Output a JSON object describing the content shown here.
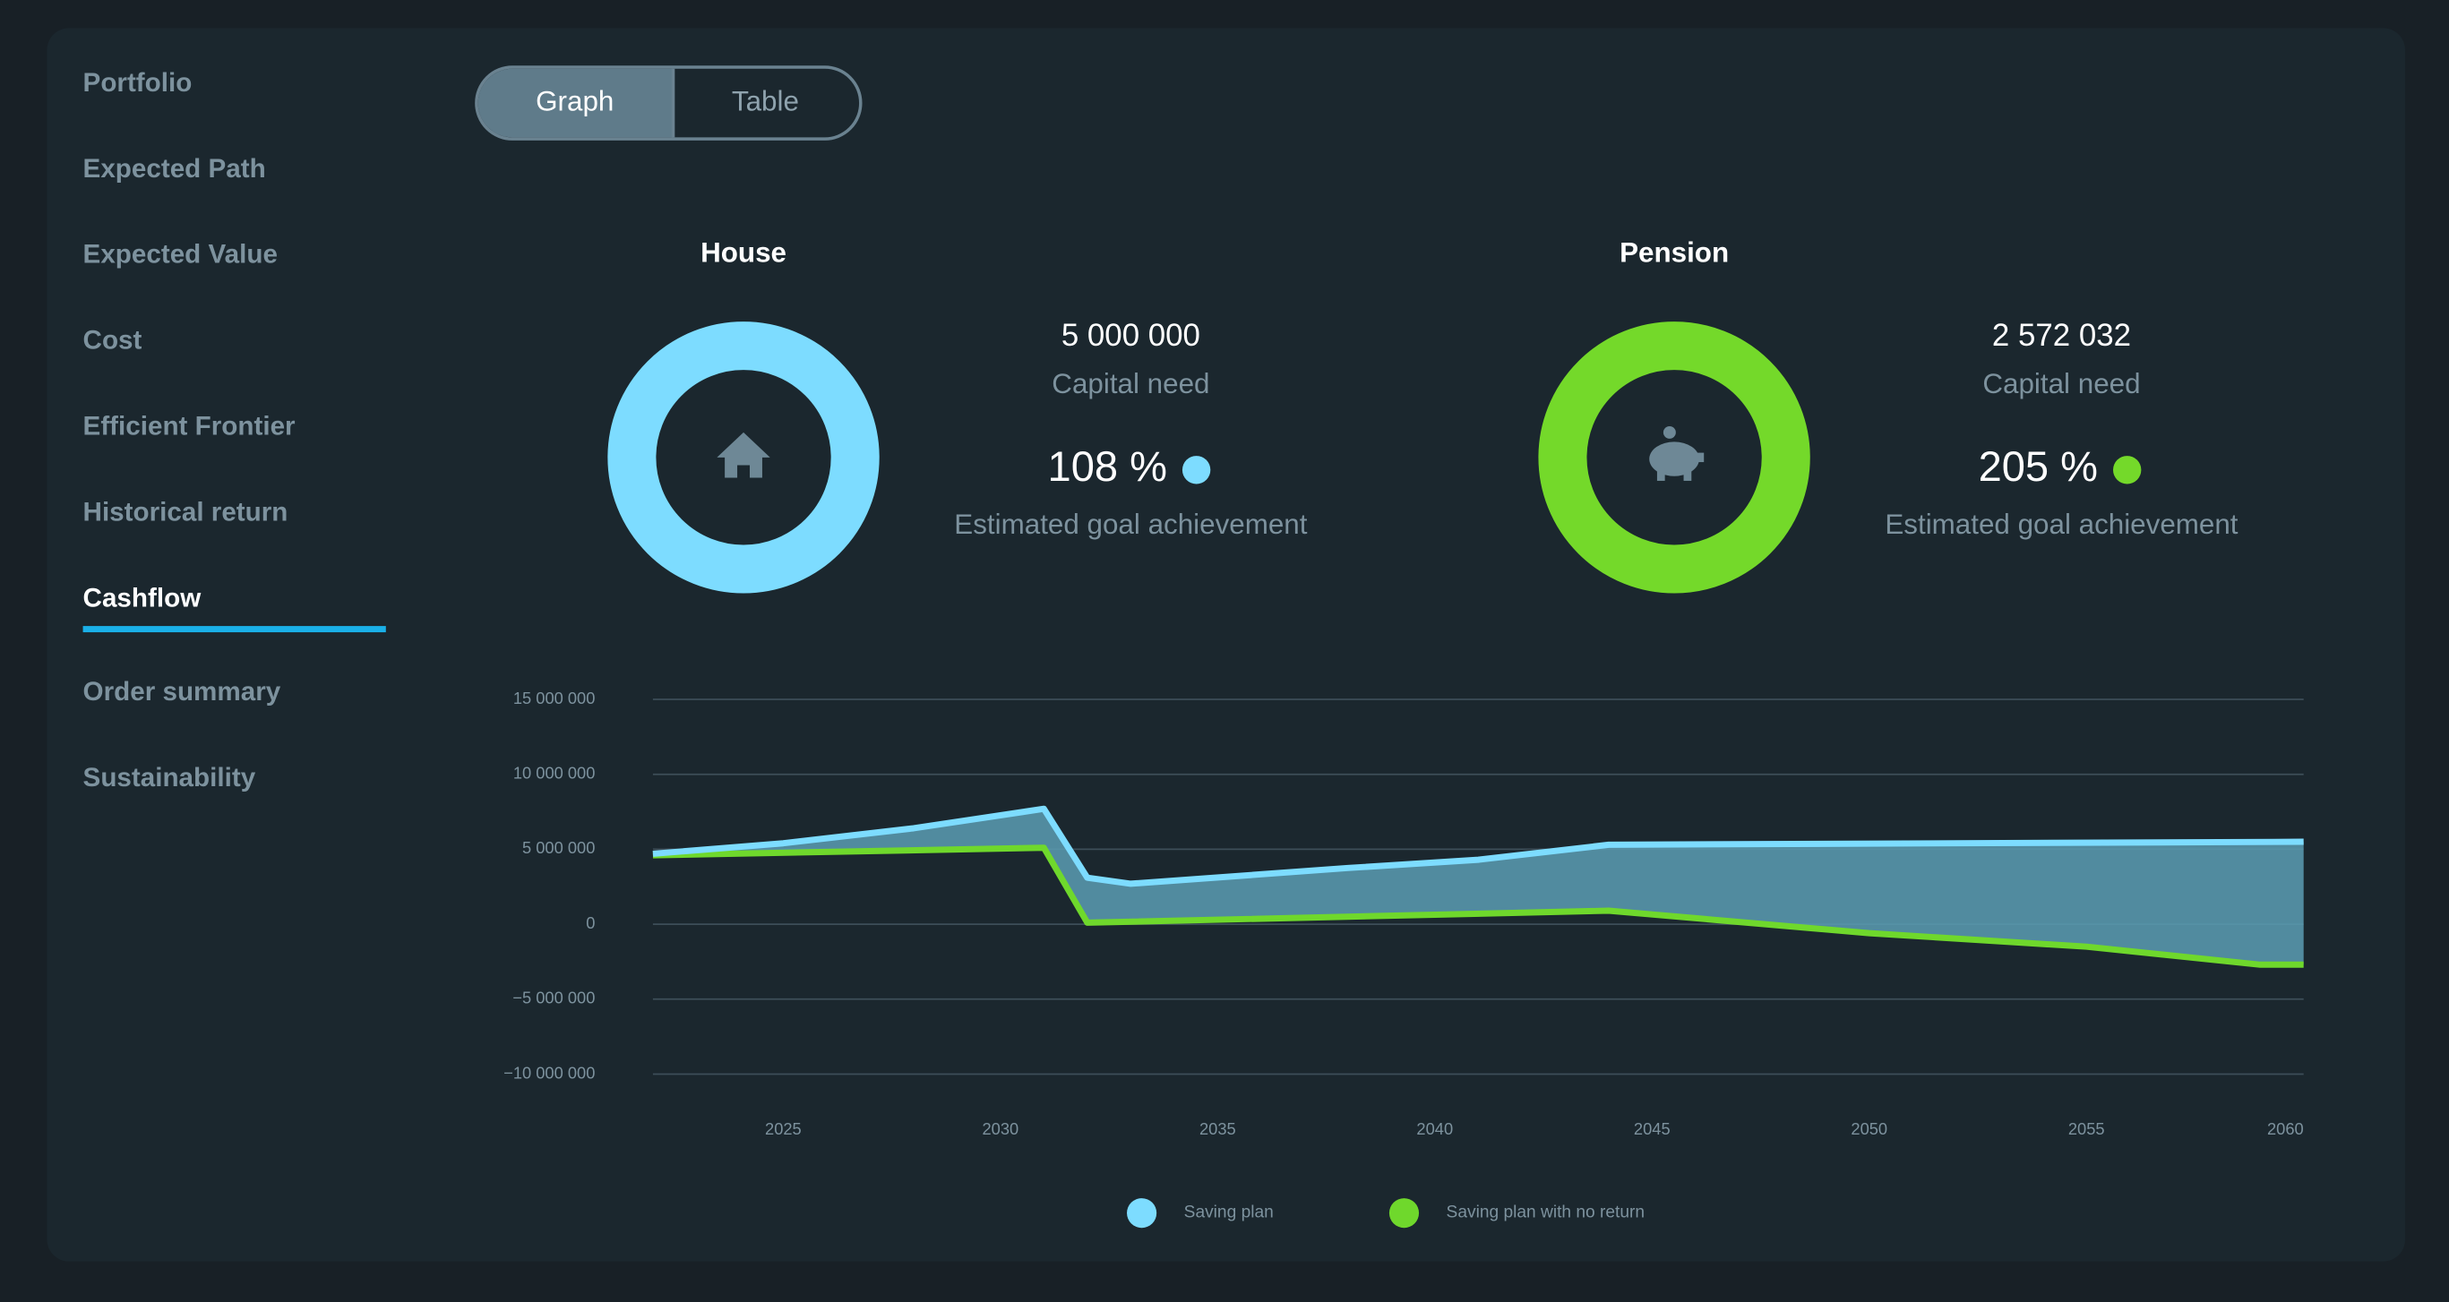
{
  "sidebar": {
    "items": [
      "Portfolio",
      "Expected Path",
      "Expected Value",
      "Cost",
      "Efficient Frontier",
      "Historical return",
      "Cashflow",
      "Order summary",
      "Sustainability"
    ],
    "active": 6
  },
  "toggle": {
    "options": [
      "Graph",
      "Table"
    ],
    "active": 0
  },
  "goals": [
    {
      "title": "House",
      "capital": "5 000 000",
      "capital_label": "Capital need",
      "achievement": "108 %",
      "achievement_label": "Estimated goal achievement",
      "color": "#7ddcff"
    },
    {
      "title": "Pension",
      "capital": "2 572 032",
      "capital_label": "Capital need",
      "achievement": "205 %",
      "achievement_label": "Estimated goal achievement",
      "color": "#74d92a"
    }
  ],
  "chart_data": {
    "type": "line",
    "area_between": true,
    "grid": true,
    "xlim": [
      2022,
      2060
    ],
    "xticks": [
      2025,
      2030,
      2035,
      2040,
      2045,
      2050,
      2055,
      2060
    ],
    "ylim": [
      -10000000,
      15000000
    ],
    "yticks": [
      {
        "value": -10000000,
        "label": "−10 000 000"
      },
      {
        "value": -5000000,
        "label": "−5 000 000"
      },
      0,
      {
        "value": 5000000,
        "label": "5 000 000"
      },
      {
        "value": 10000000,
        "label": "10 000 000"
      },
      {
        "value": 15000000,
        "label": "15 000 000"
      }
    ],
    "series": [
      {
        "name": "Saving plan",
        "color": "#7ddcff",
        "x": [
          2022,
          2025,
          2028,
          2031,
          2032,
          2033,
          2038,
          2041,
          2044,
          2060
        ],
        "values": [
          4700000,
          5400000,
          6400000,
          7700000,
          3100000,
          2700000,
          3750000,
          4300000,
          5300000,
          5500000
        ]
      },
      {
        "name": "Saving plan with no return",
        "color": "#6fd82c",
        "x": [
          2022,
          2031,
          2032,
          2044,
          2050,
          2055,
          2059,
          2060
        ],
        "values": [
          4600000,
          5100000,
          100000,
          900000,
          -600000,
          -1500000,
          -2700000,
          -2700000
        ]
      }
    ]
  }
}
